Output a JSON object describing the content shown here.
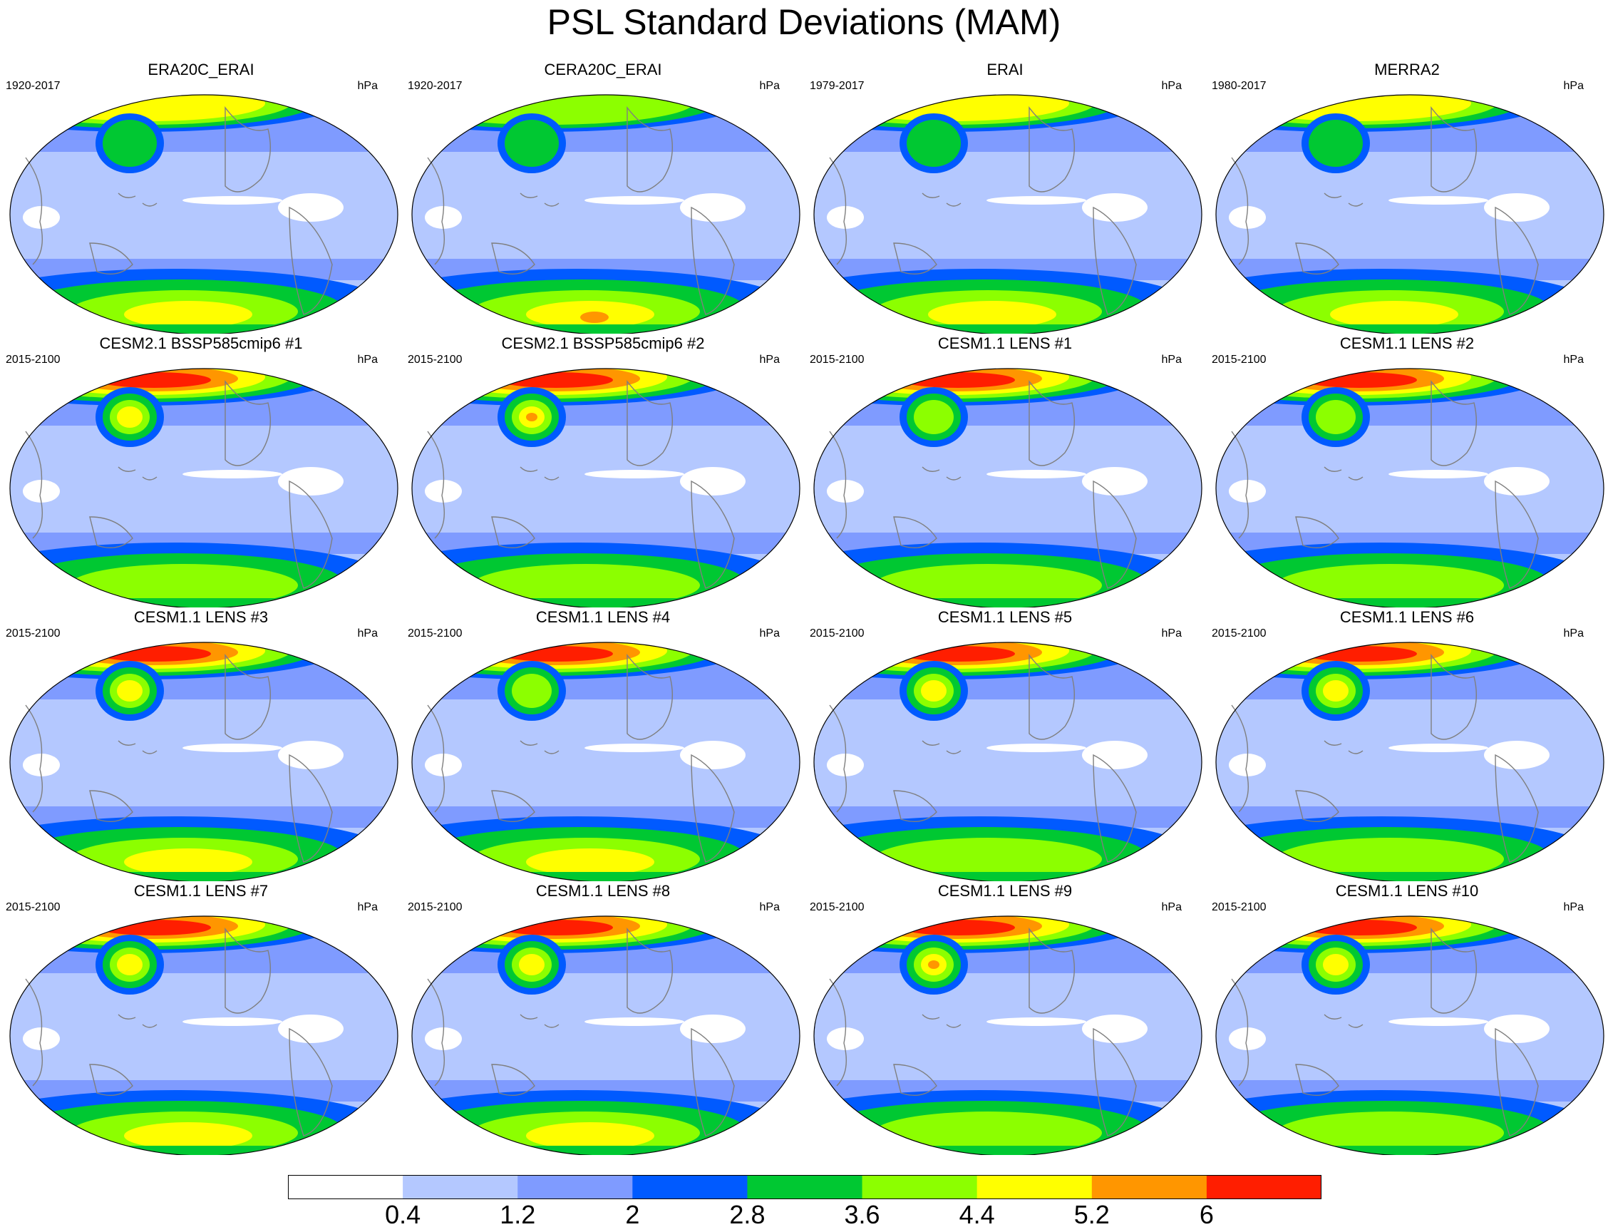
{
  "title": "PSL Standard Deviations (MAM)",
  "units": "hPa",
  "colorbar": {
    "levels": [
      "0.4",
      "1.2",
      "2",
      "2.8",
      "3.6",
      "4.4",
      "5.2",
      "6"
    ],
    "colors": [
      "#ffffff",
      "#b4c8ff",
      "#7f9bff",
      "#005aff",
      "#00c832",
      "#8cff00",
      "#ffff00",
      "#ff9600",
      "#ff1e00"
    ]
  },
  "panels": [
    {
      "title": "ERA20C_ERAI",
      "years": "1920-2017",
      "nh_max": 6,
      "sh_max": 6,
      "pac_max": 4
    },
    {
      "title": "CERA20C_ERAI",
      "years": "1920-2017",
      "nh_max": 5,
      "sh_max": 7,
      "pac_max": 4
    },
    {
      "title": "ERAI",
      "years": "1979-2017",
      "nh_max": 6,
      "sh_max": 6,
      "pac_max": 4
    },
    {
      "title": "MERRA2",
      "years": "1980-2017",
      "nh_max": 6,
      "sh_max": 6,
      "pac_max": 4
    },
    {
      "title": "CESM2.1 BSSP585cmip6 #1",
      "years": "2015-2100",
      "nh_max": 8,
      "sh_max": 5,
      "pac_max": 6
    },
    {
      "title": "CESM2.1 BSSP585cmip6 #2",
      "years": "2015-2100",
      "nh_max": 8,
      "sh_max": 5,
      "pac_max": 7
    },
    {
      "title": "CESM1.1 LENS #1",
      "years": "2015-2100",
      "nh_max": 8,
      "sh_max": 5,
      "pac_max": 5
    },
    {
      "title": "CESM1.1 LENS #2",
      "years": "2015-2100",
      "nh_max": 8,
      "sh_max": 5,
      "pac_max": 5
    },
    {
      "title": "CESM1.1 LENS #3",
      "years": "2015-2100",
      "nh_max": 8,
      "sh_max": 6,
      "pac_max": 6
    },
    {
      "title": "CESM1.1 LENS #4",
      "years": "2015-2100",
      "nh_max": 8,
      "sh_max": 6,
      "pac_max": 5
    },
    {
      "title": "CESM1.1 LENS #5",
      "years": "2015-2100",
      "nh_max": 8,
      "sh_max": 5,
      "pac_max": 6
    },
    {
      "title": "CESM1.1 LENS #6",
      "years": "2015-2100",
      "nh_max": 8,
      "sh_max": 5,
      "pac_max": 6
    },
    {
      "title": "CESM1.1 LENS #7",
      "years": "2015-2100",
      "nh_max": 8,
      "sh_max": 6,
      "pac_max": 6
    },
    {
      "title": "CESM1.1 LENS #8",
      "years": "2015-2100",
      "nh_max": 8,
      "sh_max": 6,
      "pac_max": 6
    },
    {
      "title": "CESM1.1 LENS #9",
      "years": "2015-2100",
      "nh_max": 8,
      "sh_max": 5,
      "pac_max": 7
    },
    {
      "title": "CESM1.1 LENS #10",
      "years": "2015-2100",
      "nh_max": 8,
      "sh_max": 5,
      "pac_max": 6
    }
  ]
}
